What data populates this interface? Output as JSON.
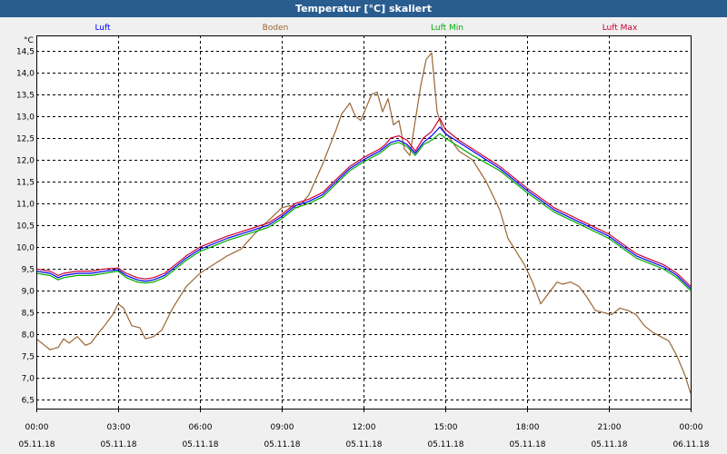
{
  "window": {
    "title": "Temperatur [°C] skaliert"
  },
  "chart_data": {
    "type": "line",
    "title": "Temperatur [°C] skaliert",
    "ylabel": "°C",
    "ylim": [
      6.3,
      14.85
    ],
    "yticks": [
      6.5,
      7.0,
      7.5,
      8.0,
      8.5,
      9.0,
      9.5,
      10.0,
      10.5,
      11.0,
      11.5,
      12.0,
      12.5,
      13.0,
      13.5,
      14.0,
      14.5
    ],
    "ytick_labels": [
      "6,5",
      "7,0",
      "7,5",
      "8,0",
      "8,5",
      "9,0",
      "9,5",
      "10,0",
      "10,5",
      "11,0",
      "11,5",
      "12,0",
      "12,5",
      "13,0",
      "13,5",
      "14,0",
      "14,5"
    ],
    "xlim": [
      0,
      24
    ],
    "xticks": [
      0,
      3,
      6,
      9,
      12,
      15,
      18,
      21,
      24
    ],
    "xtick_times": [
      "00:00",
      "03:00",
      "06:00",
      "09:00",
      "12:00",
      "15:00",
      "18:00",
      "21:00",
      "00:00"
    ],
    "xtick_dates": [
      "05.11.18",
      "05.11.18",
      "05.11.18",
      "05.11.18",
      "05.11.18",
      "05.11.18",
      "05.11.18",
      "05.11.18",
      "06.11.18"
    ],
    "series": [
      {
        "name": "Luft",
        "color": "#0000ff",
        "x": [
          0,
          0.5,
          0.8,
          1.0,
          1.5,
          2.0,
          2.5,
          3.0,
          3.3,
          3.7,
          4.0,
          4.3,
          4.7,
          5.0,
          5.5,
          6.0,
          7.0,
          8.0,
          8.5,
          9.0,
          9.5,
          10.0,
          10.5,
          11.0,
          11.5,
          12.0,
          12.3,
          12.6,
          12.8,
          13.0,
          13.3,
          13.6,
          13.9,
          14.2,
          14.5,
          14.8,
          15.0,
          15.5,
          16.0,
          17.0,
          18.0,
          19.0,
          20.0,
          21.0,
          22.0,
          23.0,
          23.5,
          24.0
        ],
        "values": [
          9.45,
          9.4,
          9.3,
          9.35,
          9.4,
          9.4,
          9.45,
          9.48,
          9.35,
          9.25,
          9.22,
          9.25,
          9.35,
          9.5,
          9.75,
          9.95,
          10.2,
          10.4,
          10.5,
          10.7,
          10.95,
          11.05,
          11.2,
          11.5,
          11.8,
          12.0,
          12.1,
          12.2,
          12.3,
          12.4,
          12.45,
          12.35,
          12.15,
          12.4,
          12.55,
          12.75,
          12.6,
          12.4,
          12.2,
          11.8,
          11.3,
          10.85,
          10.55,
          10.25,
          9.8,
          9.55,
          9.35,
          9.05
        ]
      },
      {
        "name": "Boden",
        "color": "#996633",
        "x": [
          0,
          0.3,
          0.5,
          0.8,
          1.0,
          1.2,
          1.5,
          1.8,
          2.0,
          2.3,
          2.5,
          2.8,
          3.0,
          3.2,
          3.5,
          3.8,
          4.0,
          4.3,
          4.6,
          5.0,
          5.5,
          6.0,
          6.5,
          7.0,
          7.5,
          8.0,
          8.5,
          9.0,
          9.3,
          9.6,
          10.0,
          10.5,
          11.0,
          11.2,
          11.5,
          11.7,
          11.9,
          12.1,
          12.3,
          12.5,
          12.7,
          12.9,
          13.1,
          13.3,
          13.5,
          13.7,
          13.9,
          14.1,
          14.3,
          14.5,
          14.7,
          14.9,
          15.1,
          15.5,
          16.0,
          16.5,
          17.0,
          17.3,
          17.6,
          17.9,
          18.2,
          18.5,
          18.8,
          19.1,
          19.3,
          19.6,
          19.9,
          20.2,
          20.5,
          20.8,
          21.1,
          21.4,
          21.7,
          22.0,
          22.3,
          22.6,
          22.9,
          23.2,
          23.5,
          23.8,
          24.0
        ],
        "values": [
          7.9,
          7.75,
          7.65,
          7.7,
          7.9,
          7.8,
          7.95,
          7.75,
          7.8,
          8.05,
          8.2,
          8.45,
          8.7,
          8.6,
          8.2,
          8.15,
          7.9,
          7.95,
          8.1,
          8.6,
          9.1,
          9.4,
          9.6,
          9.8,
          9.95,
          10.3,
          10.6,
          10.9,
          10.95,
          10.9,
          11.2,
          11.9,
          12.7,
          13.05,
          13.3,
          13.0,
          12.9,
          13.2,
          13.5,
          13.55,
          13.1,
          13.4,
          12.8,
          12.9,
          12.25,
          12.1,
          12.9,
          13.7,
          14.3,
          14.45,
          13.1,
          12.7,
          12.55,
          12.2,
          12.0,
          11.5,
          10.85,
          10.2,
          9.9,
          9.6,
          9.2,
          8.7,
          8.95,
          9.2,
          9.15,
          9.2,
          9.1,
          8.85,
          8.55,
          8.5,
          8.45,
          8.6,
          8.55,
          8.45,
          8.2,
          8.05,
          7.95,
          7.85,
          7.5,
          7.05,
          6.65
        ]
      },
      {
        "name": "Luft Min",
        "color": "#00aa00",
        "x": [
          0,
          0.5,
          0.8,
          1.0,
          1.5,
          2.0,
          2.5,
          3.0,
          3.3,
          3.7,
          4.0,
          4.3,
          4.7,
          5.0,
          5.5,
          6.0,
          7.0,
          8.0,
          8.5,
          9.0,
          9.5,
          10.0,
          10.5,
          11.0,
          11.5,
          12.0,
          12.3,
          12.6,
          12.8,
          13.0,
          13.3,
          13.6,
          13.9,
          14.2,
          14.5,
          14.8,
          15.0,
          15.5,
          16.0,
          17.0,
          18.0,
          19.0,
          20.0,
          21.0,
          22.0,
          23.0,
          23.5,
          24.0
        ],
        "values": [
          9.4,
          9.35,
          9.25,
          9.3,
          9.35,
          9.35,
          9.4,
          9.45,
          9.3,
          9.2,
          9.18,
          9.2,
          9.3,
          9.45,
          9.7,
          9.9,
          10.15,
          10.35,
          10.45,
          10.65,
          10.9,
          11.0,
          11.15,
          11.45,
          11.75,
          11.95,
          12.05,
          12.15,
          12.25,
          12.35,
          12.4,
          12.3,
          12.1,
          12.35,
          12.45,
          12.6,
          12.5,
          12.3,
          12.1,
          11.75,
          11.25,
          10.8,
          10.5,
          10.2,
          9.75,
          9.5,
          9.3,
          9.0
        ]
      },
      {
        "name": "Luft Max",
        "color": "#cc0033",
        "x": [
          0,
          0.5,
          0.8,
          1.0,
          1.5,
          2.0,
          2.5,
          3.0,
          3.3,
          3.7,
          4.0,
          4.3,
          4.7,
          5.0,
          5.5,
          6.0,
          7.0,
          8.0,
          8.5,
          9.0,
          9.5,
          10.0,
          10.5,
          11.0,
          11.5,
          12.0,
          12.3,
          12.6,
          12.8,
          13.0,
          13.3,
          13.6,
          13.9,
          14.2,
          14.5,
          14.8,
          15.0,
          15.5,
          16.0,
          17.0,
          18.0,
          19.0,
          20.0,
          21.0,
          22.0,
          23.0,
          23.5,
          24.0
        ],
        "values": [
          9.5,
          9.45,
          9.35,
          9.4,
          9.45,
          9.45,
          9.5,
          9.52,
          9.4,
          9.3,
          9.27,
          9.3,
          9.4,
          9.55,
          9.8,
          10.0,
          10.25,
          10.45,
          10.55,
          10.75,
          11.0,
          11.1,
          11.25,
          11.55,
          11.85,
          12.05,
          12.15,
          12.25,
          12.35,
          12.5,
          12.55,
          12.45,
          12.2,
          12.5,
          12.65,
          12.95,
          12.7,
          12.45,
          12.25,
          11.85,
          11.35,
          10.9,
          10.6,
          10.3,
          9.85,
          9.6,
          9.4,
          9.1
        ]
      }
    ]
  }
}
